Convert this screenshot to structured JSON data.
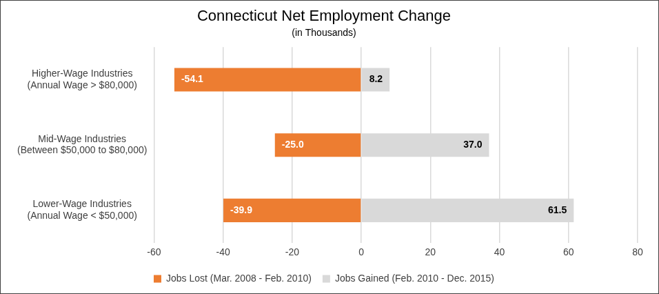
{
  "chart_data": {
    "type": "bar",
    "title": "Connecticut Net Employment Change",
    "subtitle": "(in Thousands)",
    "orientation": "horizontal",
    "stacked": true,
    "categories": [
      [
        "Higher-Wage Industries",
        "(Annual Wage > $80,000)"
      ],
      [
        "Mid-Wage Industries",
        "(Between $50,000 to $80,000)"
      ],
      [
        "Lower-Wage Industries",
        "(Annual Wage < $50,000)"
      ]
    ],
    "series": [
      {
        "name": "Jobs Lost (Mar. 2008 - Feb. 2010)",
        "color": "#ED7D31",
        "values": [
          -54.1,
          -25.0,
          -39.9
        ],
        "value_labels": [
          "-54.1",
          "-25.0",
          "-39.9"
        ]
      },
      {
        "name": "Jobs Gained (Feb. 2010 - Dec. 2015)",
        "color": "#D9D9D9",
        "values": [
          8.2,
          37.0,
          61.5
        ],
        "value_labels": [
          "8.2",
          "37.0",
          "61.5"
        ]
      }
    ],
    "xlim": [
      -60,
      80
    ],
    "xticks": [
      -60,
      -40,
      -20,
      0,
      20,
      40,
      60,
      80
    ],
    "grid": true,
    "legend": "bottom",
    "data_labels": true
  }
}
